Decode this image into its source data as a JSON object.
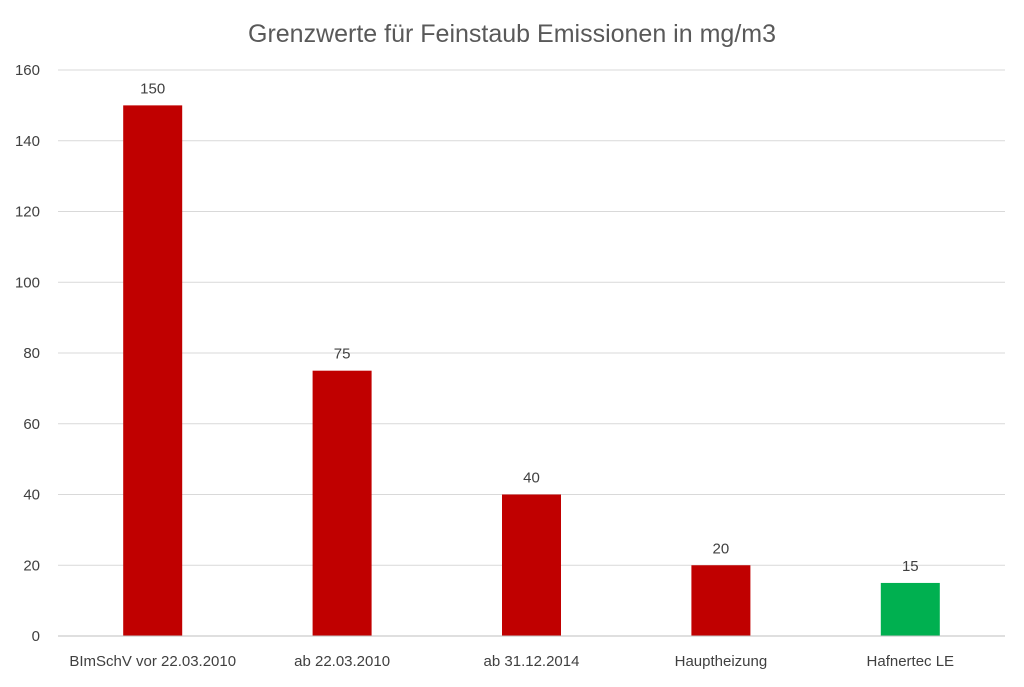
{
  "chart_data": {
    "type": "bar",
    "title": "Grenzwerte für Feinstaub Emissionen in mg/m3",
    "xlabel": "",
    "ylabel": "",
    "categories": [
      "BImSchV vor 22.03.2010",
      "ab 22.03.2010",
      "ab 31.12.2014",
      "Hauptheizung",
      "Hafnertec LE"
    ],
    "values": [
      150,
      75,
      40,
      20,
      15
    ],
    "data_labels": [
      "150",
      "75",
      "40",
      "20",
      "15"
    ],
    "bar_colors": [
      "#c00000",
      "#c00000",
      "#c00000",
      "#c00000",
      "#00b050"
    ],
    "ylim": [
      0,
      160
    ],
    "yticks": [
      0,
      20,
      40,
      60,
      80,
      100,
      120,
      140,
      160
    ],
    "ytick_labels": [
      "0",
      "20",
      "40",
      "60",
      "80",
      "100",
      "120",
      "140",
      "160"
    ],
    "grid": true,
    "legend": "none"
  }
}
